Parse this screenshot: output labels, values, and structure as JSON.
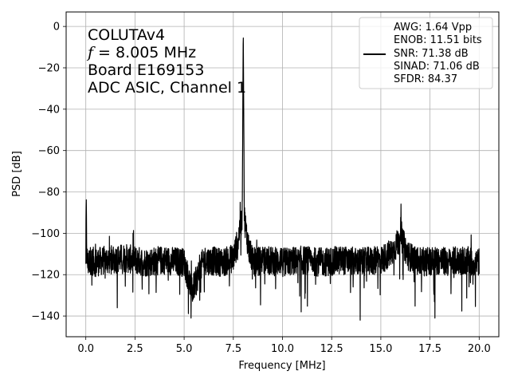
{
  "chart_data": {
    "type": "line",
    "xlabel": "Frequency [MHz]",
    "ylabel": "PSD [dB]",
    "xlim": [
      -1,
      21
    ],
    "ylim": [
      -150,
      7
    ],
    "xticks": [
      0.0,
      2.5,
      5.0,
      7.5,
      10.0,
      12.5,
      15.0,
      17.5,
      20.0
    ],
    "xtick_labels": [
      "0.0",
      "2.5",
      "5.0",
      "7.5",
      "10.0",
      "12.5",
      "15.0",
      "17.5",
      "20.0"
    ],
    "yticks": [
      0,
      -20,
      -40,
      -60,
      -80,
      -100,
      -120,
      -140
    ],
    "ytick_labels": [
      "0",
      "−20",
      "−40",
      "−60",
      "−80",
      "−100",
      "−120",
      "−140"
    ],
    "grid": true,
    "annotations": [
      "COLUTAv4",
      "= 8.005 MHz",
      "Board E169153",
      "ADC ASIC, Channel  1"
    ],
    "annotation_symbol": "f",
    "legend": {
      "placement": "upper right",
      "lines": [
        "AWG: 1.64 Vpp",
        "ENOB: 11.51 bits",
        "SNR: 71.38 dB",
        "SINAD: 71.06 dB",
        "SFDR: 84.37"
      ]
    },
    "series": [
      {
        "color": "#000000",
        "description_points": {
          "x": [
            0.0,
            0.02,
            0.05,
            0.1,
            0.2,
            0.5,
            1.0,
            2.0,
            3.0,
            4.0,
            5.0,
            5.4,
            6.0,
            7.0,
            7.5,
            7.7,
            7.85,
            7.95,
            8.005,
            8.06,
            8.15,
            8.3,
            8.5,
            9.0,
            10.0,
            11.0,
            12.0,
            13.0,
            14.0,
            15.0,
            15.6,
            15.9,
            16.01,
            16.1,
            16.4,
            17.0,
            17.8,
            18.5,
            19.0,
            20.0
          ],
          "y": [
            -112,
            -85,
            -110,
            -115,
            -113,
            -114,
            -113,
            -112,
            -114,
            -113,
            -114,
            -128,
            -113,
            -114,
            -112,
            -105,
            -97,
            -92,
            0,
            -92,
            -99,
            -108,
            -114,
            -113,
            -114,
            -113,
            -114,
            -113,
            -114,
            -113,
            -109,
            -104,
            -98,
            -104,
            -111,
            -114,
            -113,
            -114,
            -113,
            -114
          ]
        },
        "noise_floor_db": -113,
        "noise_spread_db": 7,
        "deepest_dips": [
          {
            "x": 5.35,
            "y": -141
          },
          {
            "x": 13.95,
            "y": -142
          },
          {
            "x": 17.75,
            "y": -141
          },
          {
            "x": 1.6,
            "y": -136
          },
          {
            "x": 10.95,
            "y": -138
          }
        ]
      }
    ]
  }
}
